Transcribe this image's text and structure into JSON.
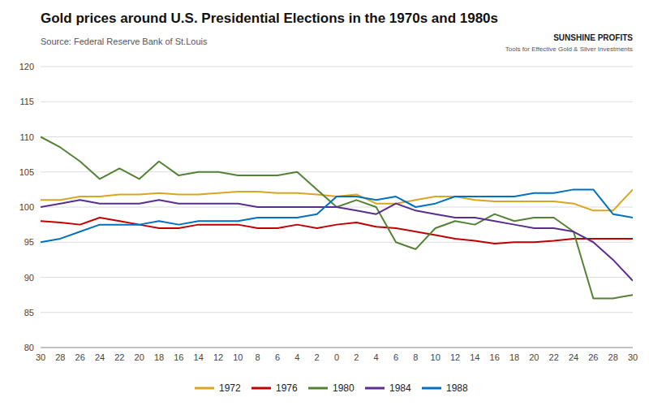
{
  "chart_data": {
    "type": "line",
    "title": "Gold prices around U.S. Presidential Elections in the 1970s and 1980s",
    "subtitle": "Source: Federal Reserve Bank of St.Louis",
    "annotations": [
      "SUNSHINE PROFITS",
      "Tools for Effective Gold & Silver Investments"
    ],
    "categories": [
      "30",
      "28",
      "26",
      "24",
      "22",
      "20",
      "18",
      "16",
      "14",
      "12",
      "10",
      "8",
      "6",
      "4",
      "2",
      "0",
      "2",
      "4",
      "6",
      "8",
      "10",
      "12",
      "14",
      "16",
      "18",
      "20",
      "22",
      "24",
      "26",
      "28",
      "30"
    ],
    "series": [
      {
        "name": "1972",
        "color": "#DAA520",
        "values": [
          101.0,
          101.0,
          101.5,
          101.5,
          101.8,
          101.8,
          102.0,
          101.8,
          101.8,
          102.0,
          102.2,
          102.2,
          102.0,
          102.0,
          101.8,
          101.5,
          101.8,
          100.5,
          100.5,
          101.0,
          101.5,
          101.5,
          101.0,
          100.8,
          100.8,
          100.8,
          100.8,
          100.5,
          99.5,
          99.5,
          102.5
        ]
      },
      {
        "name": "1976",
        "color": "#C00000",
        "values": [
          98.0,
          97.8,
          97.5,
          98.5,
          98.0,
          97.5,
          97.0,
          97.0,
          97.5,
          97.5,
          97.5,
          97.0,
          97.0,
          97.5,
          97.0,
          97.5,
          97.8,
          97.2,
          97.0,
          96.5,
          96.0,
          95.5,
          95.2,
          94.8,
          95.0,
          95.0,
          95.2,
          95.5,
          95.5,
          95.5,
          95.5
        ]
      },
      {
        "name": "1980",
        "color": "#548235",
        "values": [
          110.0,
          108.5,
          106.5,
          104.0,
          105.5,
          104.0,
          106.5,
          104.5,
          105.0,
          105.0,
          104.5,
          104.5,
          104.5,
          105.0,
          102.5,
          100.0,
          101.0,
          100.0,
          95.0,
          94.0,
          97.0,
          98.0,
          97.5,
          99.0,
          98.0,
          98.5,
          98.5,
          96.5,
          87.0,
          87.0,
          87.5
        ]
      },
      {
        "name": "1984",
        "color": "#5B2D8E",
        "values": [
          100.0,
          100.5,
          101.0,
          100.5,
          100.5,
          100.5,
          101.0,
          100.5,
          100.5,
          100.5,
          100.5,
          100.0,
          100.0,
          100.0,
          100.0,
          100.0,
          99.5,
          99.0,
          100.5,
          99.5,
          99.0,
          98.5,
          98.5,
          98.0,
          97.5,
          97.0,
          97.0,
          96.5,
          95.0,
          92.5,
          89.5
        ]
      },
      {
        "name": "1988",
        "color": "#0070C0",
        "values": [
          95.0,
          95.5,
          96.5,
          97.5,
          97.5,
          97.5,
          98.0,
          97.5,
          98.0,
          98.0,
          98.0,
          98.5,
          98.5,
          98.5,
          99.0,
          101.5,
          101.5,
          101.0,
          101.5,
          100.0,
          100.5,
          101.5,
          101.5,
          101.5,
          101.5,
          102.0,
          102.0,
          102.5,
          102.5,
          99.0,
          98.5
        ]
      }
    ],
    "ylim": [
      80,
      120
    ],
    "yticks": [
      80,
      85,
      90,
      95,
      100,
      105,
      110,
      115,
      120
    ],
    "grid": true,
    "legend": "bottom"
  }
}
